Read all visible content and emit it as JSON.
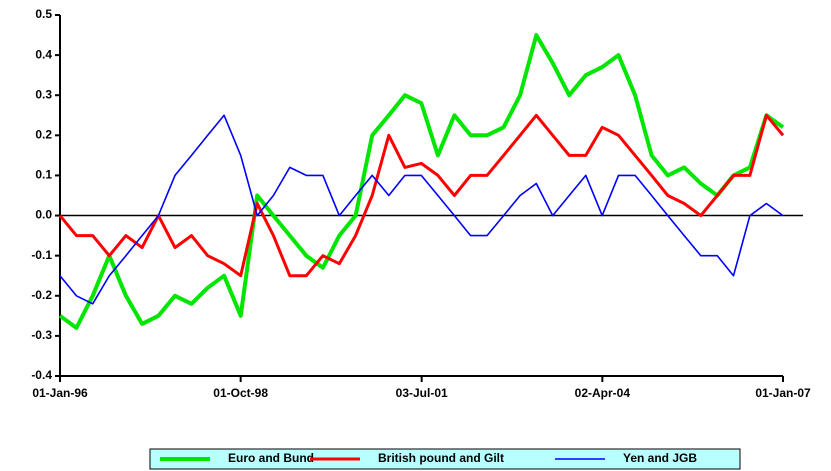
{
  "chart_data": {
    "type": "line",
    "x": [
      "1996-01-01",
      "1996-04-01",
      "1996-07-01",
      "1996-10-01",
      "1997-01-01",
      "1997-04-01",
      "1997-07-01",
      "1997-10-01",
      "1998-01-01",
      "1998-04-01",
      "1998-07-01",
      "1998-10-01",
      "1999-01-01",
      "1999-04-01",
      "1999-07-01",
      "1999-10-01",
      "2000-01-01",
      "2000-04-01",
      "2000-07-01",
      "2000-10-01",
      "2001-01-01",
      "2001-04-01",
      "2001-07-01",
      "2001-10-01",
      "2002-01-01",
      "2002-04-01",
      "2002-07-01",
      "2002-10-01",
      "2003-01-01",
      "2003-04-01",
      "2003-07-01",
      "2003-10-01",
      "2004-01-01",
      "2004-04-01",
      "2004-07-01",
      "2004-10-01",
      "2005-01-01",
      "2005-04-01",
      "2005-07-01",
      "2005-10-01",
      "2006-01-01",
      "2006-04-01",
      "2006-07-01",
      "2006-10-01",
      "2007-01-01"
    ],
    "series": [
      {
        "name": "Euro and Bund",
        "color": "#00e600",
        "values": [
          -0.25,
          -0.28,
          -0.2,
          -0.1,
          -0.2,
          -0.27,
          -0.25,
          -0.2,
          -0.22,
          -0.18,
          -0.15,
          -0.25,
          0.05,
          0.0,
          -0.05,
          -0.1,
          -0.13,
          -0.05,
          0.0,
          0.2,
          0.25,
          0.3,
          0.28,
          0.15,
          0.25,
          0.2,
          0.2,
          0.22,
          0.3,
          0.45,
          0.38,
          0.3,
          0.35,
          0.37,
          0.4,
          0.3,
          0.15,
          0.1,
          0.12,
          0.08,
          0.05,
          0.1,
          0.12,
          0.25,
          0.22
        ]
      },
      {
        "name": "British pound and Gilt",
        "color": "#ff0000",
        "values": [
          0.0,
          -0.05,
          -0.05,
          -0.1,
          -0.05,
          -0.08,
          0.0,
          -0.08,
          -0.05,
          -0.1,
          -0.12,
          -0.15,
          0.03,
          -0.05,
          -0.15,
          -0.15,
          -0.1,
          -0.12,
          -0.05,
          0.05,
          0.2,
          0.12,
          0.13,
          0.1,
          0.05,
          0.1,
          0.1,
          0.15,
          0.2,
          0.25,
          0.2,
          0.15,
          0.15,
          0.22,
          0.2,
          0.15,
          0.1,
          0.05,
          0.03,
          0.0,
          0.05,
          0.1,
          0.1,
          0.25,
          0.2
        ]
      },
      {
        "name": "Yen and JGB",
        "color": "#0000ff",
        "values": [
          -0.15,
          -0.2,
          -0.22,
          -0.15,
          -0.1,
          -0.05,
          0.0,
          0.1,
          0.15,
          0.2,
          0.25,
          0.15,
          0.0,
          0.05,
          0.12,
          0.1,
          0.1,
          0.0,
          0.05,
          0.1,
          0.05,
          0.1,
          0.1,
          0.05,
          0.0,
          -0.05,
          -0.05,
          0.0,
          0.05,
          0.08,
          0.0,
          0.05,
          0.1,
          0.0,
          0.1,
          0.1,
          0.05,
          0.0,
          -0.05,
          -0.1,
          -0.1,
          -0.15,
          0.0,
          0.03,
          0.0
        ]
      }
    ],
    "xlim": [
      "1996-01-01",
      "2007-01-01"
    ],
    "xticks": [
      {
        "value": "1996-01-01",
        "label": "01-Jan-96"
      },
      {
        "value": "1998-10-01",
        "label": "01-Oct-98"
      },
      {
        "value": "2001-07-03",
        "label": "03-Jul-01"
      },
      {
        "value": "2004-04-02",
        "label": "02-Apr-04"
      },
      {
        "value": "2007-01-01",
        "label": "01-Jan-07"
      }
    ],
    "ylim": [
      -0.4,
      0.5
    ],
    "yticks": [
      -0.4,
      -0.3,
      -0.2,
      -0.1,
      {
        "value": 0,
        "label": "0.0"
      },
      0.1,
      0.2,
      0.3,
      0.4,
      0.5
    ]
  }
}
